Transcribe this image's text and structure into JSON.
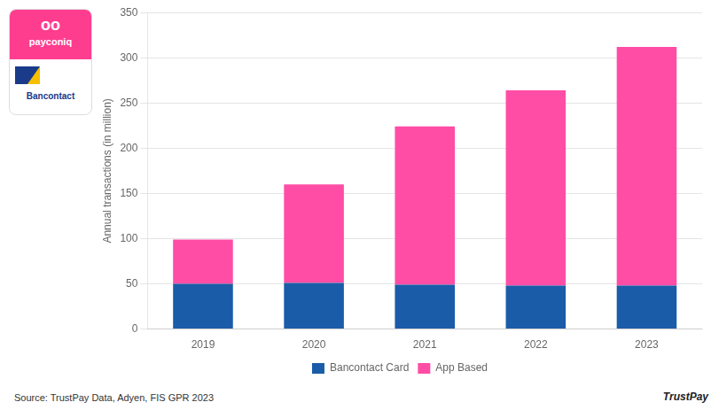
{
  "chart_data": {
    "type": "bar",
    "stacked": true,
    "categories": [
      "2019",
      "2020",
      "2021",
      "2022",
      "2023"
    ],
    "series": [
      {
        "name": "Bancontact Card",
        "color": "#1a5ca8",
        "values": [
          50,
          51,
          49,
          48,
          48
        ]
      },
      {
        "name": "App Based",
        "color": "#ff4da6",
        "values": [
          49,
          109,
          175,
          216,
          264
        ]
      }
    ],
    "ylabel": "Annual transactions (in million)",
    "ylim": [
      0,
      350
    ],
    "yticks": [
      0,
      50,
      100,
      150,
      200,
      250,
      300,
      350
    ],
    "grid": true,
    "legend": "bottom",
    "annotations": [
      "Source: TrustPay Data, Adyen, FIS GPR 2023",
      "TrustPay",
      "oo",
      "payconiq",
      "Bancontact"
    ]
  }
}
